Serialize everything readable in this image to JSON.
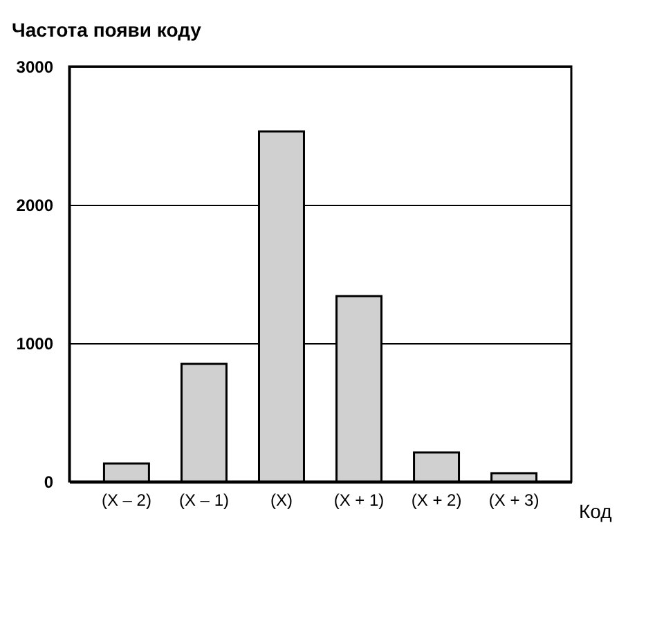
{
  "chart_data": {
    "type": "bar",
    "ylabel": "Частота появи коду",
    "xlabel": "Код",
    "categories": [
      "(X – 2)",
      "(X – 1)",
      "(X)",
      "(X + 1)",
      "(X + 2)",
      "(X + 3)"
    ],
    "values": [
      130,
      850,
      2530,
      1340,
      210,
      60
    ],
    "color": "#d0d0d0",
    "ylim": [
      0,
      3000
    ],
    "yticks": [
      0,
      1000,
      2000,
      3000
    ],
    "grid": "y"
  }
}
